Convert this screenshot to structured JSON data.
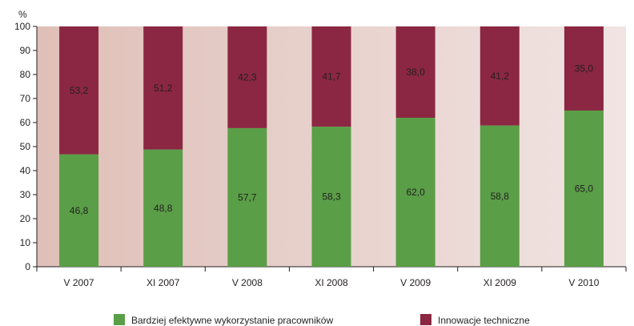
{
  "chart_data": {
    "type": "bar",
    "stacked": true,
    "ylabel": "%",
    "ylim": [
      0,
      100
    ],
    "yticks": [
      0,
      10,
      20,
      30,
      40,
      50,
      60,
      70,
      80,
      90,
      100
    ],
    "categories": [
      "V 2007",
      "XI 2007",
      "V 2008",
      "XI 2008",
      "V 2009",
      "XI 2009",
      "V 2010"
    ],
    "series": [
      {
        "name": "Bardziej efektywne wykorzystanie pracowników",
        "color": "#5a9e47",
        "values": [
          46.8,
          48.8,
          57.7,
          58.3,
          62.0,
          58.8,
          65.0
        ],
        "labels": [
          "46,8",
          "48,8",
          "57,7",
          "58,3",
          "62,0",
          "58,8",
          "65,0"
        ]
      },
      {
        "name": "Innowacje techniczne",
        "color": "#8b2742",
        "values": [
          53.2,
          51.2,
          42.3,
          41.7,
          38.0,
          41.2,
          35.0
        ],
        "labels": [
          "53,2",
          "51,2",
          "42,3",
          "41,7",
          "38,0",
          "41,2",
          "35,0"
        ]
      }
    ],
    "background_gradient": [
      "#dfbfb7",
      "#f1e4e3"
    ],
    "legend_position": "bottom",
    "grid": false
  }
}
